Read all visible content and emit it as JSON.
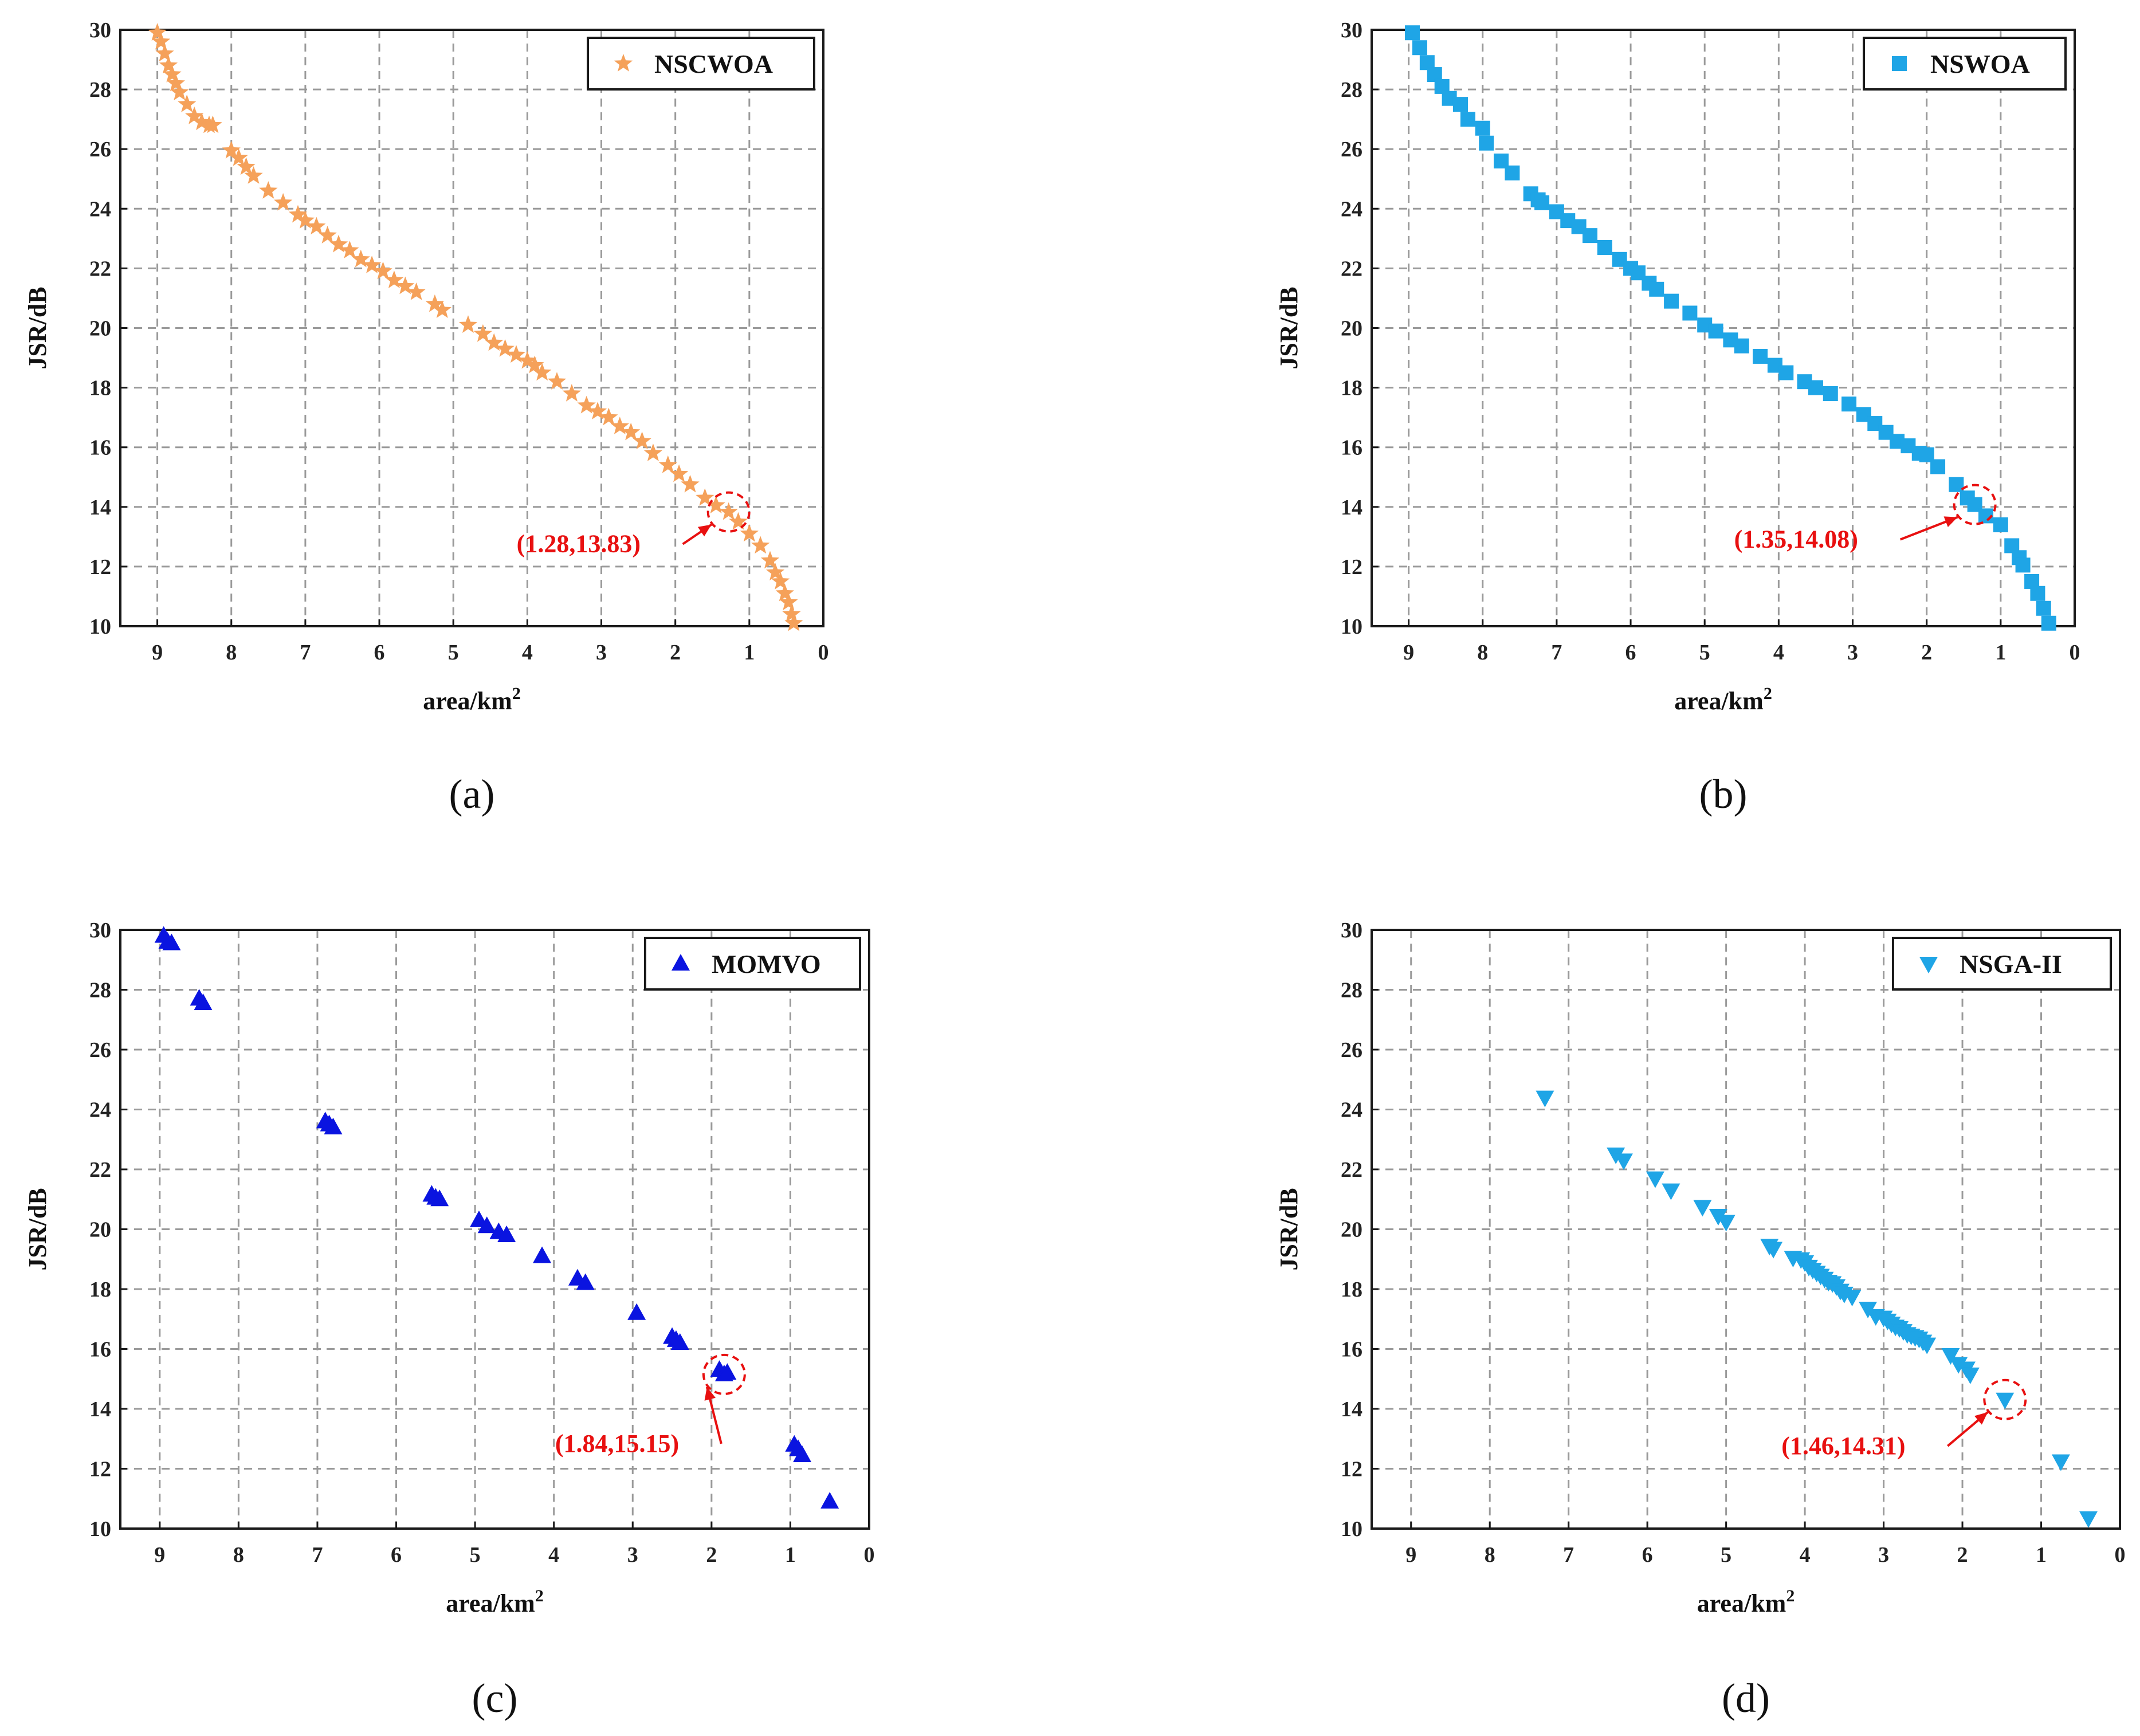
{
  "chart_data": [
    {
      "type": "scatter",
      "panel_label": "(a)",
      "xlabel": "area/km",
      "xlabel_sup": "2",
      "ylabel": "JSR/dB",
      "xlim": [
        9.5,
        0
      ],
      "ylim": [
        10,
        30
      ],
      "xticks": [
        "9",
        "8",
        "7",
        "6",
        "5",
        "4",
        "3",
        "2",
        "1",
        "0"
      ],
      "yticks": [
        "10",
        "12",
        "14",
        "16",
        "18",
        "20",
        "22",
        "24",
        "26",
        "28",
        "30"
      ],
      "grid": true,
      "legend": {
        "label": "NSCWOA",
        "position": "top-right"
      },
      "marker": "star",
      "color": "#f5a15a",
      "x": [
        9.0,
        8.95,
        8.9,
        8.85,
        8.8,
        8.75,
        8.7,
        8.6,
        8.5,
        8.4,
        8.3,
        8.25,
        8.0,
        7.9,
        7.8,
        7.7,
        7.5,
        7.3,
        7.1,
        7.0,
        6.85,
        6.7,
        6.55,
        6.4,
        6.25,
        6.1,
        5.95,
        5.8,
        5.65,
        5.5,
        5.25,
        5.15,
        4.8,
        4.6,
        4.45,
        4.3,
        4.15,
        4.0,
        3.9,
        3.8,
        3.6,
        3.4,
        3.2,
        3.05,
        2.9,
        2.75,
        2.6,
        2.45,
        2.3,
        2.1,
        1.95,
        1.8,
        1.6,
        1.45,
        1.28,
        1.15,
        1.0,
        0.85,
        0.72,
        0.65,
        0.58,
        0.52,
        0.47,
        0.43,
        0.4
      ],
      "y": [
        29.9,
        29.6,
        29.2,
        28.8,
        28.5,
        28.2,
        27.9,
        27.5,
        27.1,
        26.9,
        26.8,
        26.8,
        25.95,
        25.7,
        25.4,
        25.1,
        24.6,
        24.2,
        23.8,
        23.6,
        23.4,
        23.1,
        22.8,
        22.6,
        22.3,
        22.1,
        21.9,
        21.6,
        21.4,
        21.2,
        20.8,
        20.6,
        20.1,
        19.8,
        19.5,
        19.3,
        19.1,
        18.9,
        18.75,
        18.5,
        18.2,
        17.8,
        17.4,
        17.2,
        17.0,
        16.7,
        16.5,
        16.2,
        15.8,
        15.4,
        15.1,
        14.75,
        14.3,
        14.05,
        13.83,
        13.5,
        13.1,
        12.7,
        12.2,
        11.8,
        11.5,
        11.1,
        10.8,
        10.4,
        10.1
      ],
      "annotation": {
        "text": "(1.28,13.83)",
        "x": 1.28,
        "y": 13.83
      }
    },
    {
      "type": "scatter",
      "panel_label": "(b)",
      "xlabel": "area/km",
      "xlabel_sup": "2",
      "ylabel": "JSR/dB",
      "xlim": [
        9.5,
        0
      ],
      "ylim": [
        10,
        30
      ],
      "xticks": [
        "9",
        "8",
        "7",
        "6",
        "5",
        "4",
        "3",
        "2",
        "1",
        "0"
      ],
      "yticks": [
        "10",
        "12",
        "14",
        "16",
        "18",
        "20",
        "22",
        "24",
        "26",
        "28",
        "30"
      ],
      "grid": true,
      "legend": {
        "label": "NSWOA",
        "position": "top-right"
      },
      "marker": "square",
      "color": "#1fa5e6",
      "x": [
        8.95,
        8.85,
        8.75,
        8.65,
        8.55,
        8.45,
        8.3,
        8.2,
        8.0,
        7.95,
        7.75,
        7.6,
        7.35,
        7.25,
        7.2,
        7.0,
        6.85,
        6.7,
        6.55,
        6.35,
        6.15,
        6.0,
        5.9,
        5.75,
        5.65,
        5.45,
        5.2,
        5.0,
        4.85,
        4.65,
        4.5,
        4.25,
        4.05,
        3.9,
        3.65,
        3.5,
        3.3,
        3.05,
        2.85,
        2.7,
        2.55,
        2.4,
        2.25,
        2.1,
        2.0,
        1.85,
        1.6,
        1.45,
        1.35,
        1.2,
        1.0,
        0.85,
        0.75,
        0.7,
        0.58,
        0.5,
        0.42,
        0.35
      ],
      "y": [
        29.9,
        29.4,
        28.9,
        28.5,
        28.1,
        27.7,
        27.5,
        27.0,
        26.7,
        26.2,
        25.6,
        25.2,
        24.5,
        24.3,
        24.2,
        23.9,
        23.6,
        23.4,
        23.1,
        22.7,
        22.3,
        22.0,
        21.85,
        21.5,
        21.3,
        20.9,
        20.5,
        20.1,
        19.9,
        19.6,
        19.4,
        19.05,
        18.75,
        18.5,
        18.2,
        18.0,
        17.8,
        17.45,
        17.1,
        16.8,
        16.5,
        16.2,
        16.05,
        15.8,
        15.75,
        15.35,
        14.75,
        14.3,
        14.08,
        13.7,
        13.4,
        12.7,
        12.3,
        12.05,
        11.5,
        11.1,
        10.6,
        10.1
      ],
      "annotation": {
        "text": "(1.35,14.08)",
        "x": 1.35,
        "y": 14.08
      }
    },
    {
      "type": "scatter",
      "panel_label": "(c)",
      "xlabel": "area/km",
      "xlabel_sup": "2",
      "ylabel": "JSR/dB",
      "xlim": [
        9.5,
        0
      ],
      "ylim": [
        10,
        30
      ],
      "xticks": [
        "9",
        "8",
        "7",
        "6",
        "5",
        "4",
        "3",
        "2",
        "1",
        "0"
      ],
      "yticks": [
        "10",
        "12",
        "14",
        "16",
        "18",
        "20",
        "22",
        "24",
        "26",
        "28",
        "30"
      ],
      "grid": true,
      "legend": {
        "label": "MOMVO",
        "position": "top-right"
      },
      "marker": "triangle-up",
      "color": "#0a14e0",
      "x": [
        8.95,
        8.9,
        8.85,
        8.5,
        8.45,
        6.9,
        6.85,
        6.8,
        5.55,
        5.5,
        5.45,
        4.95,
        4.85,
        4.7,
        4.6,
        4.15,
        3.7,
        3.6,
        2.95,
        2.5,
        2.45,
        2.4,
        1.9,
        1.84,
        1.8,
        0.95,
        0.9,
        0.85,
        0.5
      ],
      "y": [
        29.8,
        29.6,
        29.55,
        27.7,
        27.55,
        23.6,
        23.5,
        23.4,
        21.15,
        21.05,
        21.0,
        20.3,
        20.1,
        19.9,
        19.8,
        19.1,
        18.35,
        18.2,
        17.2,
        16.4,
        16.3,
        16.2,
        15.3,
        15.15,
        15.2,
        12.8,
        12.65,
        12.45,
        10.9
      ],
      "annotation": {
        "text": "(1.84,15.15)",
        "x": 1.84,
        "y": 15.15
      }
    },
    {
      "type": "scatter",
      "panel_label": "(d)",
      "xlabel": "area/km",
      "xlabel_sup": "2",
      "ylabel": "JSR/dB",
      "xlim": [
        9.5,
        0
      ],
      "ylim": [
        10,
        30
      ],
      "xticks": [
        "9",
        "8",
        "7",
        "6",
        "5",
        "4",
        "3",
        "2",
        "1",
        "0"
      ],
      "yticks": [
        "10",
        "12",
        "14",
        "16",
        "18",
        "20",
        "22",
        "24",
        "26",
        "28",
        "30"
      ],
      "grid": true,
      "legend": {
        "label": "NSGA-II",
        "position": "top-right"
      },
      "marker": "triangle-down",
      "color": "#1fa5e6",
      "x": [
        7.3,
        6.4,
        6.3,
        5.9,
        5.7,
        5.3,
        5.1,
        5.0,
        4.45,
        4.4,
        4.15,
        4.05,
        4.0,
        3.95,
        3.9,
        3.85,
        3.8,
        3.75,
        3.7,
        3.65,
        3.6,
        3.55,
        3.5,
        3.4,
        3.2,
        3.1,
        3.0,
        2.95,
        2.9,
        2.85,
        2.8,
        2.75,
        2.7,
        2.65,
        2.6,
        2.55,
        2.5,
        2.45,
        2.15,
        2.05,
        1.95,
        1.9,
        1.46,
        0.75,
        0.4
      ],
      "y": [
        24.4,
        22.5,
        22.3,
        21.7,
        21.3,
        20.75,
        20.45,
        20.25,
        19.45,
        19.35,
        19.05,
        19.0,
        18.9,
        18.75,
        18.65,
        18.55,
        18.45,
        18.35,
        18.25,
        18.2,
        18.1,
        17.95,
        17.85,
        17.75,
        17.35,
        17.1,
        17.05,
        16.95,
        16.85,
        16.75,
        16.7,
        16.6,
        16.5,
        16.45,
        16.4,
        16.35,
        16.25,
        16.15,
        15.8,
        15.5,
        15.35,
        15.15,
        14.31,
        12.25,
        10.35
      ],
      "annotation": {
        "text": "(1.46,14.31)",
        "x": 1.46,
        "y": 14.31
      }
    }
  ]
}
